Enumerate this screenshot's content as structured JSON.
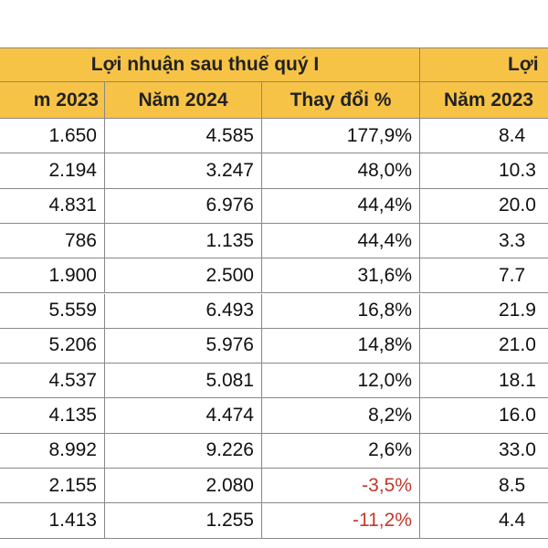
{
  "header": {
    "group": "Lợi nhuận sau thuế quý I",
    "group_right": "Lợi",
    "columns": [
      "m 2023",
      "Năm 2024",
      "Thay đổi %",
      "Năm 2023"
    ]
  },
  "table": {
    "rows": [
      [
        "1.650",
        "4.585",
        "177,9%",
        "8.4"
      ],
      [
        "2.194",
        "3.247",
        "48,0%",
        "10.3"
      ],
      [
        "4.831",
        "6.976",
        "44,4%",
        "20.0"
      ],
      [
        "786",
        "1.135",
        "44,4%",
        "3.3"
      ],
      [
        "1.900",
        "2.500",
        "31,6%",
        "7.7"
      ],
      [
        "5.559",
        "6.493",
        "16,8%",
        "21.9"
      ],
      [
        "5.206",
        "5.976",
        "14,8%",
        "21.0"
      ],
      [
        "4.537",
        "5.081",
        "12,0%",
        "18.1"
      ],
      [
        "4.135",
        "4.474",
        "8,2%",
        "16.0"
      ],
      [
        "8.992",
        "9.226",
        "2,6%",
        "33.0"
      ],
      [
        "2.155",
        "2.080",
        "-3,5%",
        "8.5"
      ],
      [
        "1.413",
        "1.255",
        "-11,2%",
        "4.4"
      ]
    ]
  },
  "style": {
    "header_color": "#f7c347",
    "negative_color": "#c0392b"
  }
}
